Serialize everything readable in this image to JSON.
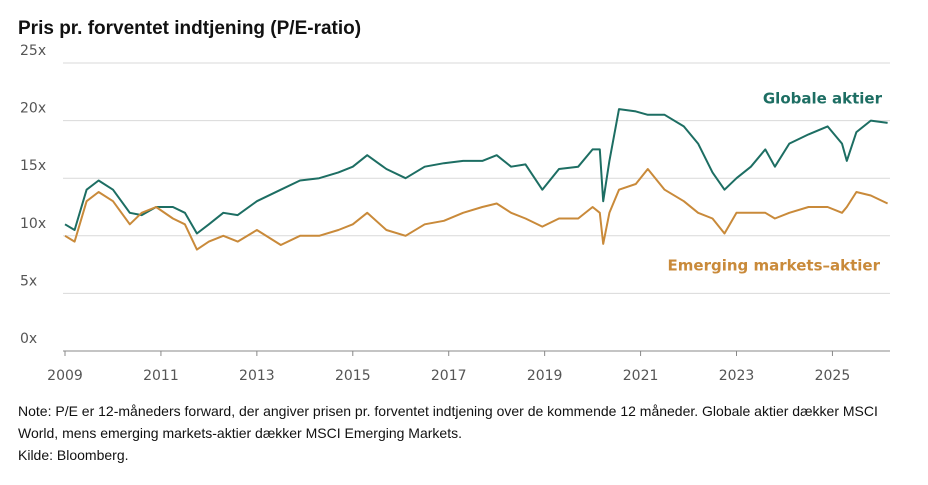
{
  "chart_data": {
    "type": "line",
    "title": "Pris pr. forventet indtjening (P/E-ratio)",
    "note": "Note: P/E er 12-måneders forward, der angiver prisen pr. forventet indtjening over de kommende 12 måneder. Globale aktier dækker MSCI World, mens emerging markets-aktier dækker MSCI Emerging Markets.",
    "source": "Kilde: Bloomberg.",
    "x": [
      2009.0,
      2009.2,
      2009.45,
      2009.7,
      2010.0,
      2010.35,
      2010.6,
      2010.9,
      2011.25,
      2011.5,
      2011.75,
      2012.0,
      2012.3,
      2012.6,
      2013.0,
      2013.5,
      2013.9,
      2014.3,
      2014.7,
      2015.0,
      2015.3,
      2015.7,
      2016.1,
      2016.5,
      2016.9,
      2017.3,
      2017.7,
      2018.0,
      2018.3,
      2018.6,
      2018.95,
      2019.3,
      2019.7,
      2020.0,
      2020.15,
      2020.22,
      2020.35,
      2020.55,
      2020.9,
      2021.15,
      2021.5,
      2021.9,
      2022.2,
      2022.5,
      2022.75,
      2023.0,
      2023.3,
      2023.6,
      2023.8,
      2024.1,
      2024.5,
      2024.9,
      2025.2,
      2025.3,
      2025.5,
      2025.8,
      2026.15
    ],
    "series": [
      {
        "name": "Globale aktier",
        "color": "#1d6e63",
        "values": [
          11,
          10.5,
          14,
          14.8,
          14,
          12,
          11.8,
          12.5,
          12.5,
          12,
          10.2,
          11,
          12,
          11.8,
          13,
          14,
          14.8,
          15,
          15.5,
          16,
          17,
          15.8,
          15,
          16,
          16.3,
          16.5,
          16.5,
          17,
          16,
          16.2,
          14,
          15.8,
          16,
          17.5,
          17.5,
          13,
          16.5,
          21,
          20.8,
          20.5,
          20.5,
          19.5,
          18,
          15.5,
          14,
          15,
          16,
          17.5,
          16,
          18,
          18.8,
          19.5,
          18,
          16.5,
          19,
          20,
          19.8
        ]
      },
      {
        "name": "Emerging markets–aktier",
        "color": "#c98a3a",
        "values": [
          10,
          9.5,
          13,
          13.8,
          13,
          11,
          12,
          12.5,
          11.5,
          11,
          8.8,
          9.5,
          10,
          9.5,
          10.5,
          9.2,
          10,
          10,
          10.5,
          11,
          12,
          10.5,
          10,
          11,
          11.3,
          12,
          12.5,
          12.8,
          12,
          11.5,
          10.8,
          11.5,
          11.5,
          12.5,
          12,
          9.3,
          12,
          14,
          14.5,
          15.8,
          14,
          13,
          12,
          11.5,
          10.2,
          12,
          12,
          12,
          11.5,
          12,
          12.5,
          12.5,
          12,
          12.5,
          13.8,
          13.5,
          12.8
        ]
      }
    ],
    "xlim": [
      2009,
      2026.2
    ],
    "xticks": [
      2009,
      2011,
      2013,
      2015,
      2017,
      2019,
      2021,
      2023,
      2025
    ],
    "ylim": [
      0,
      25
    ],
    "yticks": [
      {
        "value": 0,
        "label": "0x"
      },
      {
        "value": 5,
        "label": "5x"
      },
      {
        "value": 10,
        "label": "10x"
      },
      {
        "value": 15,
        "label": "15x"
      },
      {
        "value": 20,
        "label": "20x"
      },
      {
        "value": 25,
        "label": "25x"
      }
    ],
    "grid": true
  }
}
